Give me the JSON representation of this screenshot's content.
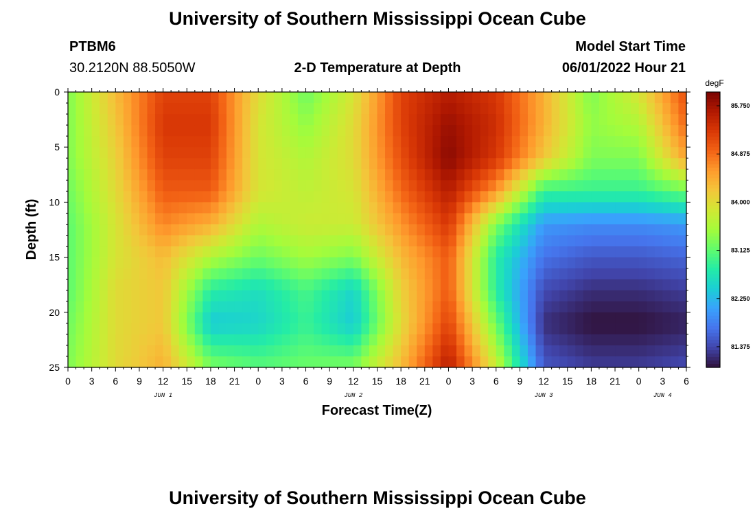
{
  "page": {
    "title": "University of Southern Mississippi Ocean Cube",
    "footer_title": "University of Southern Mississippi Ocean Cube"
  },
  "header": {
    "station": "PTBM6",
    "location": "30.2120N  88.5050W",
    "subtitle": "2-D Temperature at Depth",
    "model_label": "Model Start Time",
    "model_time": "06/01/2022 Hour 21"
  },
  "chart_data": {
    "type": "heatmap",
    "title": "2-D Temperature at Depth",
    "xlabel": "Forecast Time(Z)",
    "ylabel": "Depth (ft)",
    "units": "degF",
    "x_ticks": [
      "0",
      "3",
      "6",
      "9",
      "12",
      "15",
      "18",
      "21",
      "0",
      "3",
      "6",
      "9",
      "12",
      "15",
      "18",
      "21",
      "0",
      "3",
      "6",
      "9",
      "12",
      "15",
      "18",
      "21",
      "0",
      "3",
      "6"
    ],
    "x_date_labels": [
      "JUN 1",
      "JUN 2",
      "JUN 3",
      "JUN 4"
    ],
    "y_ticks": [
      "0",
      "5",
      "10",
      "15",
      "20",
      "25"
    ],
    "ylim": [
      0,
      25
    ],
    "xlim_hours": [
      0,
      78
    ],
    "colorbar": {
      "min": 81.0,
      "max": 86.0,
      "ticks": [
        "85.750",
        "84.875",
        "84.000",
        "83.125",
        "82.250",
        "81.375"
      ],
      "tick_values": [
        85.75,
        84.875,
        84.0,
        83.125,
        82.25,
        81.375
      ]
    },
    "colormap": [
      "#30123b",
      "#4145ab",
      "#4675ed",
      "#39a2fc",
      "#1bcfd4",
      "#24eca6",
      "#61fc6c",
      "#a4fc3b",
      "#d1e834",
      "#f3c63a",
      "#fe9b2d",
      "#f36315",
      "#d93806",
      "#b11901",
      "#7a0403"
    ],
    "depths_ft": [
      0,
      3,
      6,
      9,
      12,
      15,
      18,
      21,
      25
    ],
    "times_hours": [
      0,
      6,
      12,
      18,
      24,
      30,
      36,
      42,
      48,
      54,
      60,
      66,
      72,
      78
    ],
    "temperature_degF": [
      [
        83.3,
        84.3,
        85.2,
        85.2,
        84.0,
        83.2,
        83.9,
        85.2,
        85.6,
        85.3,
        84.4,
        83.3,
        83.9,
        85.1
      ],
      [
        83.3,
        84.2,
        85.3,
        85.3,
        83.9,
        83.4,
        84.0,
        85.2,
        85.8,
        85.4,
        84.4,
        83.4,
        83.6,
        84.9
      ],
      [
        83.3,
        84.1,
        85.2,
        85.2,
        83.9,
        83.6,
        84.0,
        85.1,
        85.9,
        85.3,
        84.2,
        83.3,
        83.3,
        84.5
      ],
      [
        83.2,
        84.0,
        85.0,
        85.0,
        83.9,
        83.7,
        83.9,
        84.9,
        85.6,
        84.6,
        82.9,
        82.9,
        82.9,
        83.2
      ],
      [
        83.1,
        83.9,
        84.7,
        84.4,
        83.6,
        83.8,
        83.8,
        84.6,
        85.3,
        83.3,
        82.0,
        81.9,
        81.9,
        82.0
      ],
      [
        83.1,
        83.9,
        84.3,
        83.6,
        83.2,
        83.5,
        83.3,
        84.3,
        85.0,
        82.8,
        81.7,
        81.5,
        81.5,
        81.6
      ],
      [
        83.1,
        84.0,
        84.2,
        82.8,
        82.6,
        83.0,
        82.5,
        84.1,
        85.0,
        82.8,
        81.4,
        81.2,
        81.2,
        81.3
      ],
      [
        83.2,
        84.0,
        84.2,
        82.4,
        82.5,
        82.9,
        82.4,
        84.0,
        85.2,
        83.2,
        81.2,
        81.0,
        81.0,
        81.1
      ],
      [
        83.3,
        84.0,
        84.4,
        83.3,
        83.1,
        83.2,
        83.3,
        84.3,
        85.6,
        83.8,
        81.5,
        81.3,
        81.3,
        81.4
      ]
    ]
  }
}
